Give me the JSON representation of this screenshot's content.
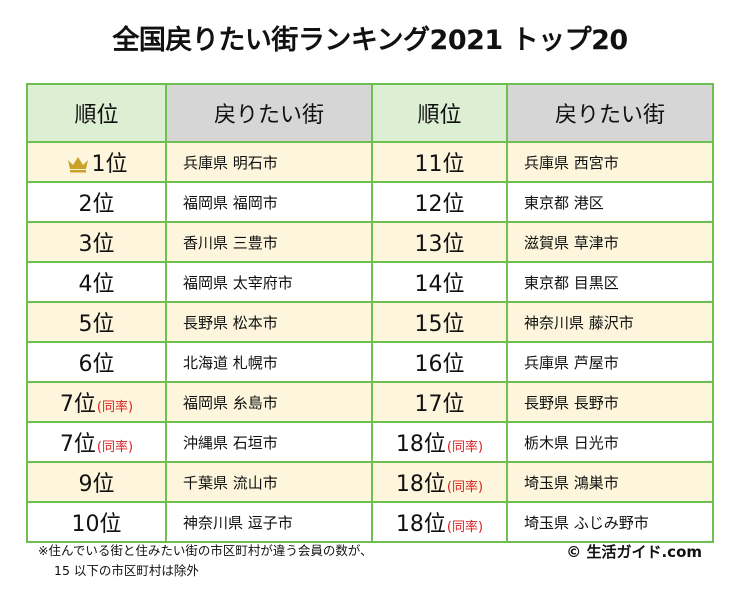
{
  "title": "全国戻りたい街ランキング2021 トップ20",
  "headers": {
    "rank": "順位",
    "city": "戻りたい街"
  },
  "tie_label": "(同率)",
  "left_column": [
    {
      "rank": "1位",
      "tie": false,
      "crown": true,
      "city": "兵庫県 明石市"
    },
    {
      "rank": "2位",
      "tie": false,
      "crown": false,
      "city": "福岡県 福岡市"
    },
    {
      "rank": "3位",
      "tie": false,
      "crown": false,
      "city": "香川県 三豊市"
    },
    {
      "rank": "4位",
      "tie": false,
      "crown": false,
      "city": "福岡県 太宰府市"
    },
    {
      "rank": "5位",
      "tie": false,
      "crown": false,
      "city": "長野県 松本市"
    },
    {
      "rank": "6位",
      "tie": false,
      "crown": false,
      "city": "北海道 札幌市"
    },
    {
      "rank": "7位",
      "tie": true,
      "crown": false,
      "city": "福岡県 糸島市"
    },
    {
      "rank": "7位",
      "tie": true,
      "crown": false,
      "city": "沖縄県 石垣市"
    },
    {
      "rank": "9位",
      "tie": false,
      "crown": false,
      "city": "千葉県 流山市"
    },
    {
      "rank": "10位",
      "tie": false,
      "crown": false,
      "city": "神奈川県 逗子市"
    }
  ],
  "right_column": [
    {
      "rank": "11位",
      "tie": false,
      "city": "兵庫県 西宮市"
    },
    {
      "rank": "12位",
      "tie": false,
      "city": "東京都 港区"
    },
    {
      "rank": "13位",
      "tie": false,
      "city": "滋賀県 草津市"
    },
    {
      "rank": "14位",
      "tie": false,
      "city": "東京都 目黒区"
    },
    {
      "rank": "15位",
      "tie": false,
      "city": "神奈川県 藤沢市"
    },
    {
      "rank": "16位",
      "tie": false,
      "city": "兵庫県 芦屋市"
    },
    {
      "rank": "17位",
      "tie": false,
      "city": "長野県 長野市"
    },
    {
      "rank": "18位",
      "tie": true,
      "city": "栃木県 日光市"
    },
    {
      "rank": "18位",
      "tie": true,
      "city": "埼玉県 鴻巣市"
    },
    {
      "rank": "18位",
      "tie": true,
      "city": "埼玉県 ふじみ野市"
    }
  ],
  "footnote": {
    "line1": "※住んでいる街と住みたい街の市区町村が違う会員の数が、",
    "line2": "15 以下の市区町村は除外"
  },
  "copyright": "© 生活ガイド.com",
  "colors": {
    "border": "#6dbf4f",
    "rank_header_bg": "#dcefd2",
    "city_header_bg": "#d6d6d6",
    "stripe_bg": "#fdf6dc",
    "tie_text": "#d92121",
    "crown": "#c9a227"
  },
  "icons": {
    "crown": "crown-icon"
  }
}
